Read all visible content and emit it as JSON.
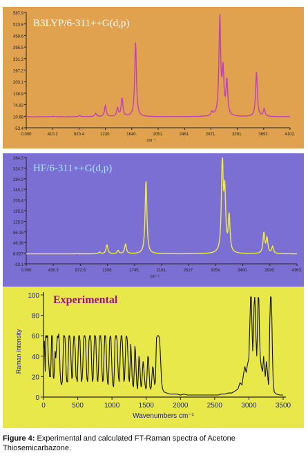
{
  "chart_data": [
    {
      "type": "line",
      "title": "B3LYP/6-311++G(d,p)",
      "xlabel": "cm⁻¹",
      "ylabel": "",
      "xlim": [
        0,
        4102
      ],
      "ylim": [
        -53.4,
        587.9
      ],
      "xticks": [
        "0.000",
        "410.2",
        "820.4",
        "1230.",
        "1640.",
        "2051.",
        "2461.",
        "2871.",
        "3281.",
        "3692.",
        "4102."
      ],
      "yticks": [
        "587.9",
        "523.8",
        "459.6",
        "395.5",
        "331.3",
        "267.2",
        "203.1",
        "138.9",
        "74.82",
        "10.68",
        "-53.4"
      ],
      "background": "#e0a24e",
      "line_color": "#bf3fbf",
      "baseline": 8,
      "peaks": [
        {
          "x": 130,
          "y": 6
        },
        {
          "x": 420,
          "y": 10
        },
        {
          "x": 600,
          "y": 6
        },
        {
          "x": 830,
          "y": 14
        },
        {
          "x": 1080,
          "y": 26
        },
        {
          "x": 1230,
          "y": 70
        },
        {
          "x": 1420,
          "y": 55
        },
        {
          "x": 1490,
          "y": 110
        },
        {
          "x": 1700,
          "y": 420
        },
        {
          "x": 2890,
          "y": 30
        },
        {
          "x": 3010,
          "y": 560
        },
        {
          "x": 3060,
          "y": 250
        },
        {
          "x": 3120,
          "y": 200
        },
        {
          "x": 3580,
          "y": 255
        },
        {
          "x": 3700,
          "y": 50
        }
      ]
    },
    {
      "type": "line",
      "title": "HF/6-311++G(d,p)",
      "xlabel": "cm⁻¹",
      "ylabel": "",
      "xlim": [
        0,
        4363
      ],
      "ylim": [
        -33.1,
        364.5
      ],
      "xticks": [
        "0.000",
        "436.3",
        "872.6",
        "1308.",
        "1745.",
        "2181.",
        "2617.",
        "3054.",
        "3490.",
        "3926.",
        "4363."
      ],
      "yticks": [
        "364.5",
        "324.7",
        "284.9",
        "245.2",
        "205.4",
        "165.6",
        "125.9",
        "86.15",
        "46.39",
        "6.627",
        "-33.1"
      ],
      "background": "#7b6fd4",
      "line_color": "#f0ee38",
      "baseline": 4,
      "peaks": [
        {
          "x": 480,
          "y": 4
        },
        {
          "x": 820,
          "y": 5
        },
        {
          "x": 1180,
          "y": 10
        },
        {
          "x": 1300,
          "y": 38
        },
        {
          "x": 1480,
          "y": 16
        },
        {
          "x": 1600,
          "y": 40
        },
        {
          "x": 1930,
          "y": 280
        },
        {
          "x": 3160,
          "y": 355
        },
        {
          "x": 3200,
          "y": 220
        },
        {
          "x": 3270,
          "y": 140
        },
        {
          "x": 3830,
          "y": 80
        },
        {
          "x": 3880,
          "y": 60
        },
        {
          "x": 3970,
          "y": 30
        }
      ]
    },
    {
      "type": "line",
      "title": "Experimental",
      "xlabel": "Wavenumbers cm⁻¹",
      "ylabel": "Raman intensity",
      "xlim": [
        0,
        3500
      ],
      "ylim": [
        0,
        100
      ],
      "xticks": [
        "0",
        "500",
        "1000",
        "1500",
        "2000",
        "2500",
        "3000",
        "3500"
      ],
      "yticks": [
        "100",
        "80",
        "60",
        "40",
        "20",
        "0"
      ],
      "background": "#e8e84a",
      "line_color": "#111111",
      "points": [
        [
          0,
          48
        ],
        [
          12,
          55
        ],
        [
          25,
          25
        ],
        [
          32,
          60
        ],
        [
          38,
          60
        ],
        [
          45,
          58
        ],
        [
          52,
          60
        ],
        [
          60,
          60
        ],
        [
          70,
          40
        ],
        [
          80,
          30
        ],
        [
          90,
          20
        ],
        [
          102,
          20
        ],
        [
          110,
          35
        ],
        [
          118,
          60
        ],
        [
          126,
          60
        ],
        [
          134,
          52
        ],
        [
          142,
          20
        ],
        [
          150,
          18
        ],
        [
          160,
          28
        ],
        [
          170,
          45
        ],
        [
          180,
          38
        ],
        [
          192,
          50
        ],
        [
          204,
          60
        ],
        [
          214,
          58
        ],
        [
          222,
          62
        ],
        [
          232,
          50
        ],
        [
          242,
          25
        ],
        [
          252,
          15
        ],
        [
          262,
          12
        ],
        [
          274,
          15
        ],
        [
          284,
          35
        ],
        [
          294,
          60
        ],
        [
          304,
          60
        ],
        [
          314,
          58
        ],
        [
          322,
          45
        ],
        [
          332,
          22
        ],
        [
          342,
          15
        ],
        [
          352,
          15
        ],
        [
          362,
          40
        ],
        [
          372,
          60
        ],
        [
          382,
          60
        ],
        [
          392,
          52
        ],
        [
          402,
          35
        ],
        [
          414,
          18
        ],
        [
          424,
          20
        ],
        [
          434,
          50
        ],
        [
          444,
          60
        ],
        [
          454,
          58
        ],
        [
          464,
          45
        ],
        [
          474,
          20
        ],
        [
          484,
          18
        ],
        [
          494,
          15
        ],
        [
          504,
          40
        ],
        [
          514,
          60
        ],
        [
          524,
          60
        ],
        [
          534,
          55
        ],
        [
          544,
          30
        ],
        [
          554,
          15
        ],
        [
          564,
          18
        ],
        [
          574,
          30
        ],
        [
          584,
          55
        ],
        [
          594,
          60
        ],
        [
          604,
          60
        ],
        [
          614,
          55
        ],
        [
          624,
          35
        ],
        [
          634,
          18
        ],
        [
          644,
          15
        ],
        [
          654,
          25
        ],
        [
          664,
          55
        ],
        [
          674,
          60
        ],
        [
          684,
          60
        ],
        [
          694,
          55
        ],
        [
          704,
          30
        ],
        [
          714,
          15
        ],
        [
          724,
          18
        ],
        [
          734,
          40
        ],
        [
          744,
          60
        ],
        [
          754,
          60
        ],
        [
          764,
          58
        ],
        [
          774,
          35
        ],
        [
          784,
          18
        ],
        [
          794,
          15
        ],
        [
          804,
          30
        ],
        [
          814,
          55
        ],
        [
          824,
          60
        ],
        [
          834,
          60
        ],
        [
          844,
          50
        ],
        [
          854,
          25
        ],
        [
          864,
          15
        ],
        [
          874,
          18
        ],
        [
          884,
          40
        ],
        [
          894,
          60
        ],
        [
          904,
          60
        ],
        [
          914,
          52
        ],
        [
          924,
          28
        ],
        [
          934,
          15
        ],
        [
          944,
          12
        ],
        [
          954,
          25
        ],
        [
          964,
          55
        ],
        [
          974,
          60
        ],
        [
          984,
          58
        ],
        [
          994,
          40
        ],
        [
          1004,
          20
        ],
        [
          1014,
          12
        ],
        [
          1024,
          10
        ],
        [
          1034,
          25
        ],
        [
          1044,
          55
        ],
        [
          1054,
          60
        ],
        [
          1064,
          60
        ],
        [
          1074,
          55
        ],
        [
          1084,
          35
        ],
        [
          1094,
          20
        ],
        [
          1104,
          15
        ],
        [
          1114,
          25
        ],
        [
          1124,
          50
        ],
        [
          1134,
          60
        ],
        [
          1144,
          60
        ],
        [
          1154,
          52
        ],
        [
          1164,
          30
        ],
        [
          1174,
          15
        ],
        [
          1184,
          18
        ],
        [
          1194,
          38
        ],
        [
          1204,
          58
        ],
        [
          1214,
          60
        ],
        [
          1224,
          55
        ],
        [
          1234,
          40
        ],
        [
          1244,
          20
        ],
        [
          1254,
          15
        ],
        [
          1264,
          30
        ],
        [
          1274,
          52
        ],
        [
          1284,
          40
        ],
        [
          1294,
          20
        ],
        [
          1304,
          12
        ],
        [
          1314,
          10
        ],
        [
          1324,
          25
        ],
        [
          1334,
          50
        ],
        [
          1344,
          45
        ],
        [
          1354,
          25
        ],
        [
          1364,
          12
        ],
        [
          1374,
          8
        ],
        [
          1384,
          20
        ],
        [
          1394,
          40
        ],
        [
          1404,
          35
        ],
        [
          1414,
          20
        ],
        [
          1424,
          10
        ],
        [
          1434,
          12
        ],
        [
          1444,
          25
        ],
        [
          1454,
          35
        ],
        [
          1464,
          30
        ],
        [
          1474,
          20
        ],
        [
          1484,
          12
        ],
        [
          1494,
          8
        ],
        [
          1504,
          10
        ],
        [
          1514,
          25
        ],
        [
          1524,
          40
        ],
        [
          1534,
          38
        ],
        [
          1544,
          22
        ],
        [
          1554,
          10
        ],
        [
          1564,
          8
        ],
        [
          1574,
          10
        ],
        [
          1584,
          20
        ],
        [
          1594,
          30
        ],
        [
          1604,
          28
        ],
        [
          1614,
          18
        ],
        [
          1624,
          12
        ],
        [
          1634,
          15
        ],
        [
          1650,
          58
        ],
        [
          1665,
          60
        ],
        [
          1680,
          60
        ],
        [
          1695,
          58
        ],
        [
          1705,
          45
        ],
        [
          1715,
          30
        ],
        [
          1725,
          15
        ],
        [
          1740,
          8
        ],
        [
          1760,
          5
        ],
        [
          1800,
          4
        ],
        [
          1850,
          3
        ],
        [
          1900,
          3
        ],
        [
          1950,
          3
        ],
        [
          2000,
          2
        ],
        [
          2050,
          3
        ],
        [
          2100,
          2
        ],
        [
          2150,
          2
        ],
        [
          2200,
          2
        ],
        [
          2250,
          2
        ],
        [
          2300,
          2
        ],
        [
          2350,
          2
        ],
        [
          2400,
          2
        ],
        [
          2450,
          2
        ],
        [
          2500,
          2
        ],
        [
          2550,
          2
        ],
        [
          2600,
          3
        ],
        [
          2650,
          3
        ],
        [
          2700,
          4
        ],
        [
          2750,
          4
        ],
        [
          2800,
          6
        ],
        [
          2840,
          8
        ],
        [
          2870,
          14
        ],
        [
          2900,
          12
        ],
        [
          2920,
          22
        ],
        [
          2940,
          30
        ],
        [
          2960,
          24
        ],
        [
          2980,
          32
        ],
        [
          3000,
          38
        ],
        [
          3015,
          75
        ],
        [
          3025,
          98
        ],
        [
          3035,
          98
        ],
        [
          3045,
          70
        ],
        [
          3055,
          45
        ],
        [
          3065,
          60
        ],
        [
          3075,
          90
        ],
        [
          3085,
          98
        ],
        [
          3095,
          85
        ],
        [
          3105,
          55
        ],
        [
          3115,
          40
        ],
        [
          3125,
          65
        ],
        [
          3135,
          98
        ],
        [
          3145,
          96
        ],
        [
          3155,
          60
        ],
        [
          3165,
          40
        ],
        [
          3180,
          30
        ],
        [
          3200,
          25
        ],
        [
          3215,
          40
        ],
        [
          3225,
          30
        ],
        [
          3240,
          20
        ],
        [
          3255,
          35
        ],
        [
          3270,
          25
        ],
        [
          3285,
          12
        ],
        [
          3295,
          30
        ],
        [
          3305,
          75
        ],
        [
          3315,
          98
        ],
        [
          3325,
          98
        ],
        [
          3335,
          80
        ],
        [
          3345,
          40
        ],
        [
          3355,
          15
        ],
        [
          3370,
          5
        ],
        [
          3400,
          3
        ],
        [
          3450,
          2
        ],
        [
          3500,
          2
        ]
      ]
    }
  ],
  "caption": {
    "label": "Figure 4:",
    "text": " Experimental and calculated FT-Raman spectra of Acetone Thiosemicarbazone."
  }
}
